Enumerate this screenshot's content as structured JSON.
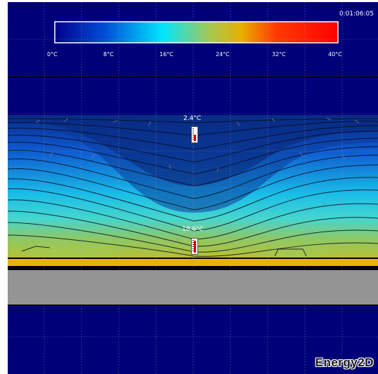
{
  "timer": "0:01:06:05",
  "colorbar": {
    "tick_labels": [
      "0°C",
      "8°C",
      "16°C",
      "24°C",
      "32°C",
      "40°C"
    ],
    "colors": [
      "#00008c",
      "#0058e0",
      "#00e6ff",
      "#e8b000",
      "#ff1a00",
      "#ff0000"
    ]
  },
  "sensors": [
    {
      "label": "2.4°C",
      "level": 0.45
    },
    {
      "label": "18.6°C",
      "level": 0.85
    }
  ],
  "brand": "Energy2D",
  "colors": {
    "background": "#000078",
    "ground": "#949494",
    "heater": "#e9b300"
  }
}
